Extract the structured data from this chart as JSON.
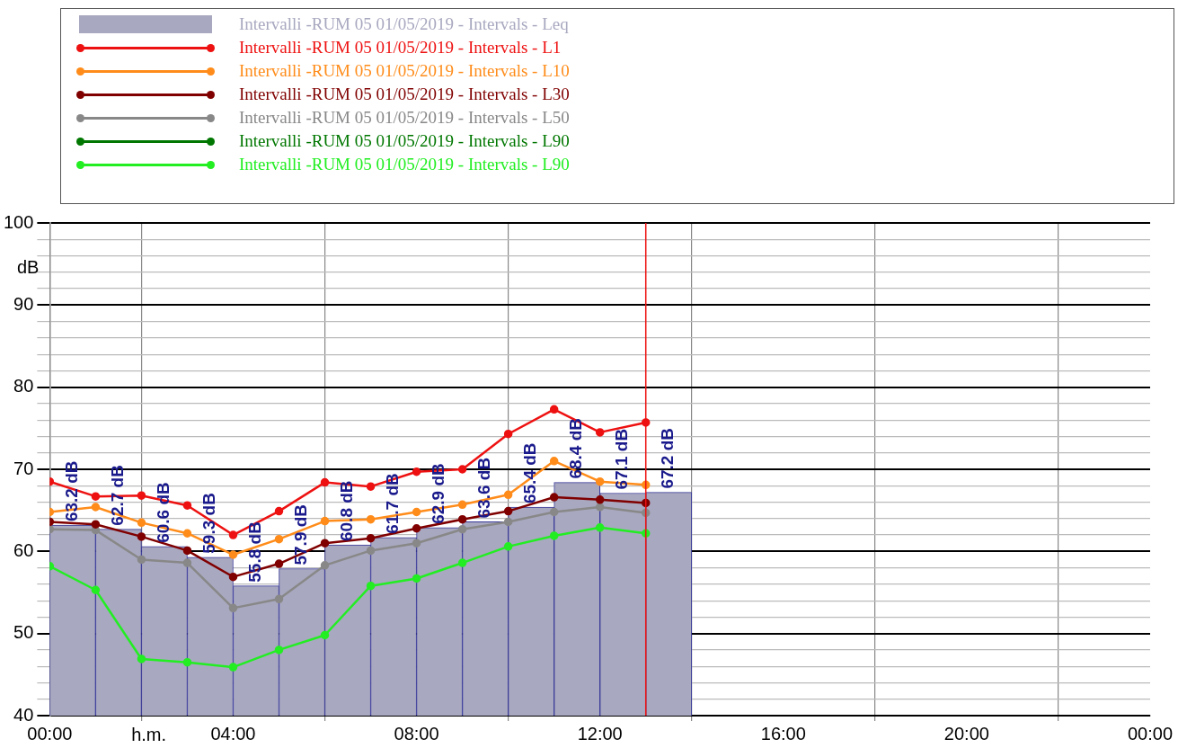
{
  "chart_data": {
    "type": "line",
    "xlabel": "h.m.",
    "ylabel": "dB",
    "x": [
      0,
      1,
      2,
      3,
      4,
      5,
      6,
      7,
      8,
      9,
      10,
      11,
      12,
      13
    ],
    "series": [
      {
        "name": "Intervalli -RUM 05 01/05/2019 - Intervals - Leq",
        "type": "bar",
        "color": "#a8a8c0",
        "x": [
          0.5,
          1.5,
          2.5,
          3.5,
          4.5,
          5.5,
          6.5,
          7.5,
          8.5,
          9.5,
          10.5,
          11.5,
          12.5,
          13.5
        ],
        "values": [
          63.2,
          62.7,
          60.6,
          59.3,
          55.8,
          57.9,
          60.8,
          61.7,
          62.9,
          63.6,
          65.4,
          68.4,
          67.1,
          67.2
        ],
        "value_labels": [
          "63.2 dB",
          "62.7 dB",
          "60.6 dB",
          "59.3 dB",
          "55.8 dB",
          "57.9 dB",
          "60.8 dB",
          "61.7 dB",
          "62.9 dB",
          "63.6 dB",
          "65.4 dB",
          "68.4 dB",
          "67.1 dB",
          "67.2 dB"
        ]
      },
      {
        "name": "Intervalli -RUM 05 01/05/2019 - Intervals - L1",
        "color": "#ee1111",
        "values": [
          68.5,
          66.7,
          66.8,
          65.6,
          62.0,
          64.9,
          68.4,
          67.9,
          69.7,
          70.0,
          74.3,
          77.3,
          74.5,
          75.7
        ]
      },
      {
        "name": "Intervalli -RUM 05 01/05/2019 - Intervals - L10",
        "color": "#ff8c1a",
        "values": [
          64.8,
          65.4,
          63.5,
          62.2,
          59.6,
          61.5,
          63.7,
          63.9,
          64.8,
          65.7,
          66.9,
          71.0,
          68.5,
          68.1
        ]
      },
      {
        "name": "Intervalli -RUM 05 01/05/2019 - Intervals - L30",
        "color": "#800000",
        "values": [
          63.6,
          63.3,
          61.8,
          60.1,
          56.9,
          58.5,
          61.0,
          61.6,
          62.8,
          63.9,
          64.9,
          66.6,
          66.3,
          65.9
        ]
      },
      {
        "name": "Intervalli -RUM 05 01/05/2019 - Intervals - L50",
        "color": "#888888",
        "values": [
          62.7,
          62.6,
          59.0,
          58.6,
          53.1,
          54.2,
          58.3,
          60.1,
          61.0,
          62.7,
          63.6,
          64.8,
          65.4,
          64.7
        ]
      },
      {
        "name": "Intervalli -RUM 05 01/05/2019 - Intervals - L90",
        "color": "#007700",
        "values": [
          null,
          null,
          null,
          null,
          null,
          null,
          null,
          null,
          null,
          null,
          null,
          null,
          null,
          null
        ]
      },
      {
        "name": "Intervalli -RUM 05 01/05/2019 - Intervals - L90",
        "color": "#22ee22",
        "values": [
          58.2,
          55.3,
          46.9,
          46.5,
          45.9,
          48.0,
          49.8,
          55.8,
          56.7,
          58.6,
          60.6,
          61.9,
          62.9,
          62.2
        ]
      }
    ],
    "xlim": [
      0,
      24
    ],
    "xticks": [
      {
        "value": 0,
        "label": "00:00"
      },
      {
        "value": 4,
        "label": "04:00"
      },
      {
        "value": 8,
        "label": "08:00"
      },
      {
        "value": 12,
        "label": "12:00"
      },
      {
        "value": 16,
        "label": "16:00"
      },
      {
        "value": 20,
        "label": "20:00"
      },
      {
        "value": 24,
        "label": "00:00"
      }
    ],
    "ylim": [
      40,
      100
    ],
    "yticks": [
      40,
      {
        "value": 42,
        "label": null
      },
      {
        "value": 44,
        "label": null
      },
      {
        "value": 46,
        "label": null
      },
      {
        "value": 48,
        "label": null
      },
      50,
      {
        "value": 52,
        "label": null
      },
      {
        "value": 54,
        "label": null
      },
      {
        "value": 56,
        "label": null
      },
      {
        "value": 58,
        "label": null
      },
      60,
      {
        "value": 62,
        "label": null
      },
      {
        "value": 64,
        "label": null
      },
      {
        "value": 66,
        "label": null
      },
      {
        "value": 68,
        "label": null
      },
      70,
      {
        "value": 72,
        "label": null
      },
      {
        "value": 74,
        "label": null
      },
      {
        "value": 76,
        "label": null
      },
      {
        "value": 78,
        "label": null
      },
      80,
      {
        "value": 82,
        "label": null
      },
      {
        "value": 84,
        "label": null
      },
      {
        "value": 86,
        "label": null
      },
      {
        "value": 88,
        "label": null
      },
      90,
      {
        "value": 92,
        "label": null
      },
      {
        "value": 94,
        "label": null
      },
      {
        "value": 96,
        "label": null
      },
      {
        "value": 98,
        "label": null
      },
      100
    ],
    "ref_lines": [
      {
        "axis": "x",
        "value": 13,
        "color": "#ee1111"
      }
    ],
    "grid": true,
    "legend": "top",
    "marker": "circle",
    "line_style": "solid"
  }
}
